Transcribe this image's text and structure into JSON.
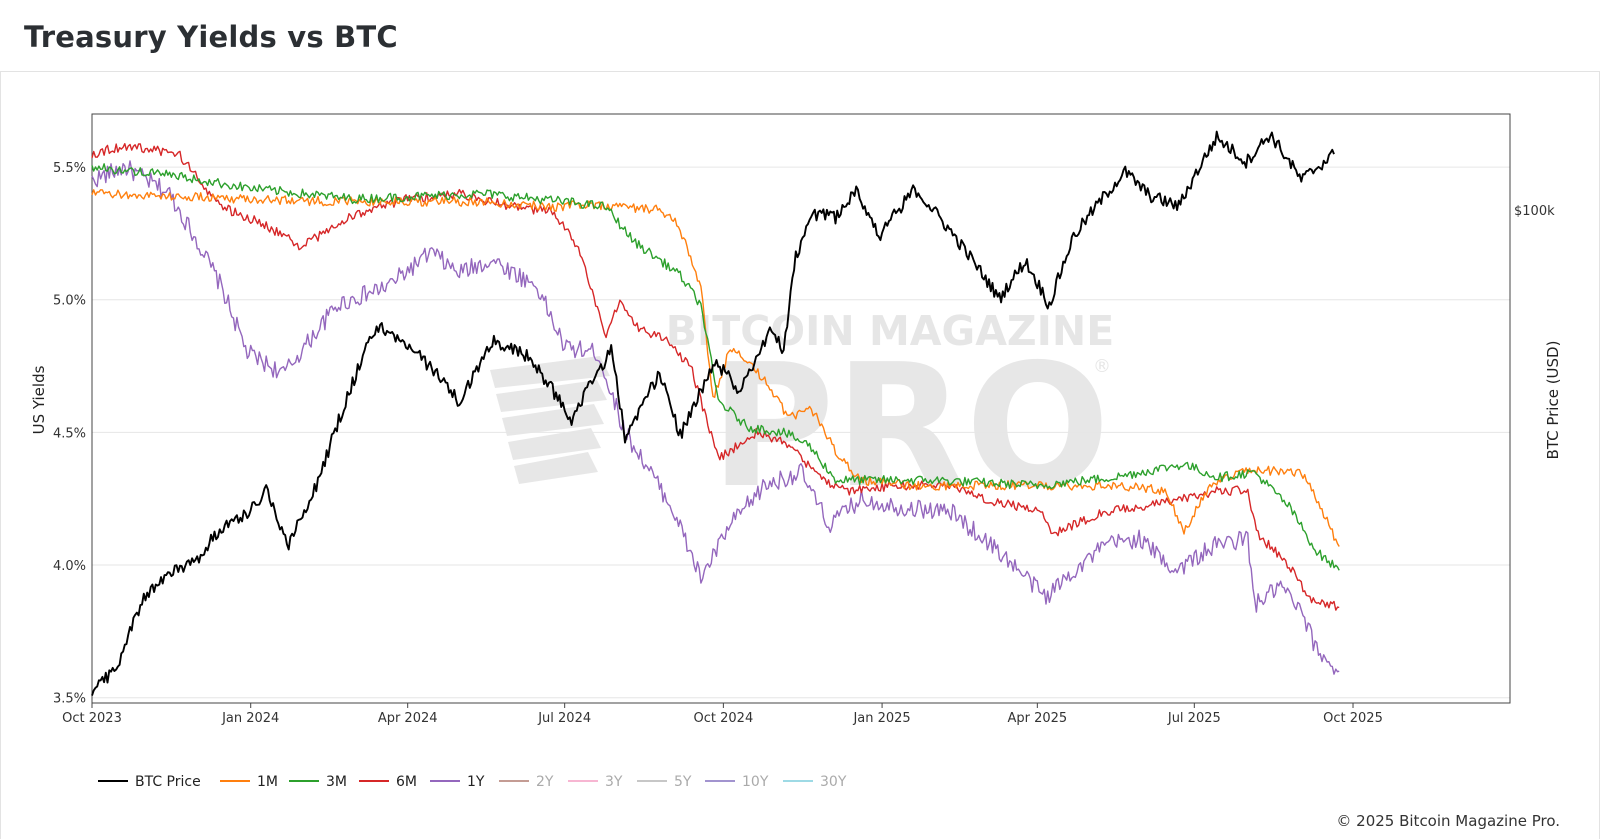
{
  "header": {
    "title": "Treasury Yields vs BTC"
  },
  "footer": {
    "copyright": "© 2025 Bitcoin Magazine Pro."
  },
  "watermark": {
    "line1": "BITCOIN MAGAZINE",
    "line2": "PRO",
    "mark": "®"
  },
  "chart_data": {
    "type": "line",
    "ylabel": "US Yields",
    "y2label": "BTC Price (USD)",
    "ylim": [
      3.48,
      5.7
    ],
    "y_ticks": [
      {
        "value": 3.5,
        "label": "3.5%"
      },
      {
        "value": 4.0,
        "label": "4.0%"
      },
      {
        "value": 4.5,
        "label": "4.5%"
      },
      {
        "value": 5.0,
        "label": "5.0%"
      },
      {
        "value": 5.5,
        "label": "5.5%"
      }
    ],
    "y2_ticks": [
      {
        "value": 100000,
        "label": "$100k"
      }
    ],
    "x_range": [
      "2023-10-01",
      "2025-12-31"
    ],
    "x_ticks": [
      {
        "date": "2023-10-01",
        "label": "Oct 2023"
      },
      {
        "date": "2024-01-01",
        "label": "Jan 2024"
      },
      {
        "date": "2024-04-01",
        "label": "Apr 2024"
      },
      {
        "date": "2024-07-01",
        "label": "Jul 2024"
      },
      {
        "date": "2024-10-01",
        "label": "Oct 2024"
      },
      {
        "date": "2025-01-01",
        "label": "Jan 2025"
      },
      {
        "date": "2025-04-01",
        "label": "Apr 2025"
      },
      {
        "date": "2025-07-01",
        "label": "Jul 2025"
      },
      {
        "date": "2025-10-01",
        "label": "Oct 2025"
      }
    ],
    "grid": true,
    "legend_position": "bottom-left",
    "btc_axis_scale": "log",
    "btc_axis_range_usd": [
      26000,
      130000
    ],
    "series": [
      {
        "name": "BTC Price",
        "color": "#000000",
        "axis": "right",
        "visible": true,
        "x": [
          "2023-10-01",
          "2023-10-15",
          "2023-11-01",
          "2023-11-15",
          "2023-12-01",
          "2023-12-15",
          "2024-01-01",
          "2024-01-10",
          "2024-01-23",
          "2024-02-10",
          "2024-02-28",
          "2024-03-14",
          "2024-04-01",
          "2024-04-18",
          "2024-05-01",
          "2024-05-21",
          "2024-06-10",
          "2024-07-05",
          "2024-07-28",
          "2024-08-05",
          "2024-08-25",
          "2024-09-06",
          "2024-09-27",
          "2024-10-10",
          "2024-10-29",
          "2024-11-05",
          "2024-11-12",
          "2024-11-22",
          "2024-12-05",
          "2024-12-17",
          "2024-12-30",
          "2025-01-20",
          "2025-02-05",
          "2025-02-28",
          "2025-03-10",
          "2025-03-25",
          "2025-04-08",
          "2025-04-22",
          "2025-05-10",
          "2025-05-22",
          "2025-06-05",
          "2025-06-22",
          "2025-07-14",
          "2025-07-31",
          "2025-08-14",
          "2025-09-01",
          "2025-09-20"
        ],
        "values": [
          27000,
          28500,
          35000,
          37000,
          38500,
          42000,
          44000,
          46500,
          40000,
          48000,
          61500,
          73000,
          69000,
          64000,
          59000,
          70000,
          67000,
          56500,
          68000,
          53500,
          64000,
          54000,
          66000,
          61000,
          72000,
          68000,
          88000,
          99000,
          98000,
          106000,
          93000,
          106000,
          97000,
          84000,
          78500,
          87000,
          77000,
          93000,
          104000,
          111000,
          104000,
          101000,
          122000,
          114000,
          123000,
          108500,
          116500
        ]
      },
      {
        "name": "1M",
        "color": "#ff7f0e",
        "axis": "left",
        "visible": true,
        "x": [
          "2023-10-01",
          "2023-11-15",
          "2024-01-01",
          "2024-02-15",
          "2024-04-01",
          "2024-05-15",
          "2024-06-25",
          "2024-07-15",
          "2024-08-05",
          "2024-08-25",
          "2024-09-05",
          "2024-09-18",
          "2024-09-25",
          "2024-10-05",
          "2024-10-25",
          "2024-11-08",
          "2024-11-20",
          "2024-12-05",
          "2024-12-20",
          "2025-01-20",
          "2025-03-01",
          "2025-04-10",
          "2025-05-15",
          "2025-06-15",
          "2025-06-25",
          "2025-07-10",
          "2025-08-01",
          "2025-09-01",
          "2025-09-12",
          "2025-09-23"
        ],
        "values": [
          5.4,
          5.39,
          5.38,
          5.37,
          5.37,
          5.37,
          5.35,
          5.36,
          5.35,
          5.34,
          5.28,
          5.05,
          4.62,
          4.82,
          4.7,
          4.55,
          4.6,
          4.43,
          4.32,
          4.3,
          4.3,
          4.3,
          4.3,
          4.28,
          4.12,
          4.3,
          4.36,
          4.35,
          4.22,
          4.07
        ]
      },
      {
        "name": "3M",
        "color": "#2ca02c",
        "axis": "left",
        "visible": true,
        "x": [
          "2023-10-01",
          "2023-11-15",
          "2024-01-01",
          "2024-03-01",
          "2024-05-15",
          "2024-07-01",
          "2024-07-25",
          "2024-08-10",
          "2024-08-25",
          "2024-09-05",
          "2024-09-18",
          "2024-09-28",
          "2024-10-15",
          "2024-11-05",
          "2024-11-20",
          "2024-12-05",
          "2024-12-20",
          "2025-02-01",
          "2025-04-01",
          "2025-05-15",
          "2025-06-25",
          "2025-07-15",
          "2025-08-05",
          "2025-08-25",
          "2025-09-10",
          "2025-09-23"
        ],
        "values": [
          5.5,
          5.47,
          5.42,
          5.38,
          5.4,
          5.37,
          5.35,
          5.22,
          5.15,
          5.1,
          4.98,
          4.62,
          4.52,
          4.5,
          4.45,
          4.32,
          4.32,
          4.32,
          4.3,
          4.33,
          4.38,
          4.33,
          4.35,
          4.22,
          4.05,
          3.98
        ]
      },
      {
        "name": "6M",
        "color": "#d62728",
        "axis": "left",
        "visible": true,
        "x": [
          "2023-10-01",
          "2023-10-20",
          "2023-11-20",
          "2023-12-15",
          "2024-01-10",
          "2024-01-30",
          "2024-03-01",
          "2024-04-01",
          "2024-05-01",
          "2024-06-01",
          "2024-06-25",
          "2024-07-10",
          "2024-07-25",
          "2024-08-02",
          "2024-08-12",
          "2024-08-28",
          "2024-09-12",
          "2024-09-28",
          "2024-10-20",
          "2024-11-10",
          "2024-11-25",
          "2024-12-12",
          "2025-01-10",
          "2025-02-10",
          "2025-03-01",
          "2025-04-04",
          "2025-04-10",
          "2025-05-10",
          "2025-06-01",
          "2025-06-25",
          "2025-07-15",
          "2025-08-01",
          "2025-08-06",
          "2025-08-25",
          "2025-09-05",
          "2025-09-23"
        ],
        "values": [
          5.55,
          5.58,
          5.55,
          5.35,
          5.28,
          5.2,
          5.32,
          5.38,
          5.4,
          5.35,
          5.33,
          5.18,
          4.85,
          5.0,
          4.9,
          4.85,
          4.75,
          4.4,
          4.5,
          4.45,
          4.33,
          4.28,
          4.3,
          4.3,
          4.25,
          4.2,
          4.12,
          4.2,
          4.22,
          4.25,
          4.28,
          4.28,
          4.12,
          4.0,
          3.88,
          3.84
        ]
      },
      {
        "name": "1Y",
        "color": "#9467bd",
        "axis": "left",
        "visible": true,
        "x": [
          "2023-10-01",
          "2023-10-20",
          "2023-11-15",
          "2023-12-01",
          "2023-12-15",
          "2023-12-30",
          "2024-01-20",
          "2024-02-20",
          "2024-03-20",
          "2024-04-15",
          "2024-04-30",
          "2024-05-20",
          "2024-06-15",
          "2024-07-01",
          "2024-07-20",
          "2024-08-05",
          "2024-08-15",
          "2024-09-01",
          "2024-09-18",
          "2024-10-05",
          "2024-10-25",
          "2024-11-15",
          "2024-12-01",
          "2024-12-20",
          "2025-01-10",
          "2025-02-10",
          "2025-03-10",
          "2025-04-06",
          "2025-04-22",
          "2025-05-12",
          "2025-05-30",
          "2025-06-20",
          "2025-07-15",
          "2025-08-01",
          "2025-08-05",
          "2025-08-20",
          "2025-09-01",
          "2025-09-10",
          "2025-09-23"
        ],
        "values": [
          5.45,
          5.5,
          5.4,
          5.22,
          5.05,
          4.8,
          4.72,
          4.98,
          5.05,
          5.18,
          5.1,
          5.15,
          5.05,
          4.82,
          4.8,
          4.5,
          4.4,
          4.22,
          3.95,
          4.15,
          4.3,
          4.35,
          4.15,
          4.25,
          4.22,
          4.2,
          4.05,
          3.88,
          3.98,
          4.08,
          4.1,
          3.98,
          4.08,
          4.1,
          3.85,
          3.92,
          3.82,
          3.68,
          3.6
        ]
      },
      {
        "name": "2Y",
        "color": "#c49c94",
        "axis": "left",
        "visible": false,
        "x": [],
        "values": []
      },
      {
        "name": "3Y",
        "color": "#f7b6d2",
        "axis": "left",
        "visible": false,
        "x": [],
        "values": []
      },
      {
        "name": "5Y",
        "color": "#c7c7c7",
        "axis": "left",
        "visible": false,
        "x": [],
        "values": []
      },
      {
        "name": "10Y",
        "color": "#a294cf",
        "axis": "left",
        "visible": false,
        "x": [],
        "values": []
      },
      {
        "name": "30Y",
        "color": "#9edae5",
        "axis": "left",
        "visible": false,
        "x": [],
        "values": []
      }
    ]
  }
}
